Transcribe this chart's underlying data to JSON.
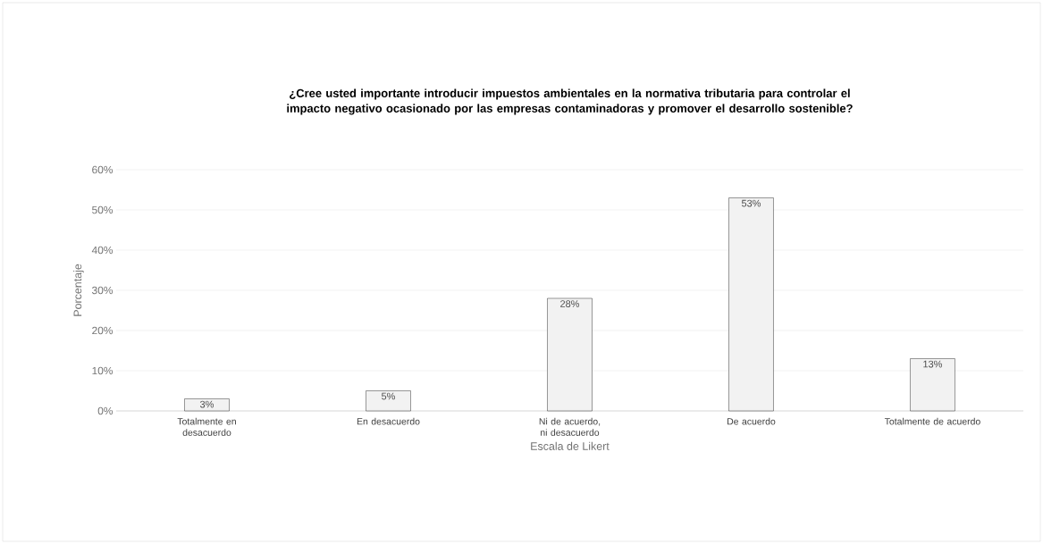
{
  "chart_data": {
    "type": "bar",
    "title": "¿Cree usted importante introducir impuestos ambientales en la normativa tributaria para controlar el impacto negativo ocasionado por las empresas contaminadoras y promover el desarrollo sostenible?",
    "xlabel": "Escala de Likert",
    "ylabel": "Porcentaje",
    "categories": [
      "Totalmente en desacuerdo",
      "En desacuerdo",
      "Ni de acuerdo, ni desacuerdo",
      "De acuerdo",
      "Totalmente de acuerdo"
    ],
    "values": [
      3,
      5,
      28,
      53,
      13
    ],
    "value_labels": [
      "3%",
      "5%",
      "28%",
      "53%",
      "13%"
    ],
    "color": "#f2f2f2",
    "ylim": [
      0,
      60
    ],
    "yticks": [
      {
        "value": 0,
        "label": "0%"
      },
      {
        "value": 10,
        "label": "10%"
      },
      {
        "value": 20,
        "label": "20%"
      },
      {
        "value": 30,
        "label": "30%"
      },
      {
        "value": 40,
        "label": "40%"
      },
      {
        "value": 50,
        "label": "50%"
      },
      {
        "value": 60,
        "label": "60%"
      }
    ],
    "grid": "y"
  }
}
